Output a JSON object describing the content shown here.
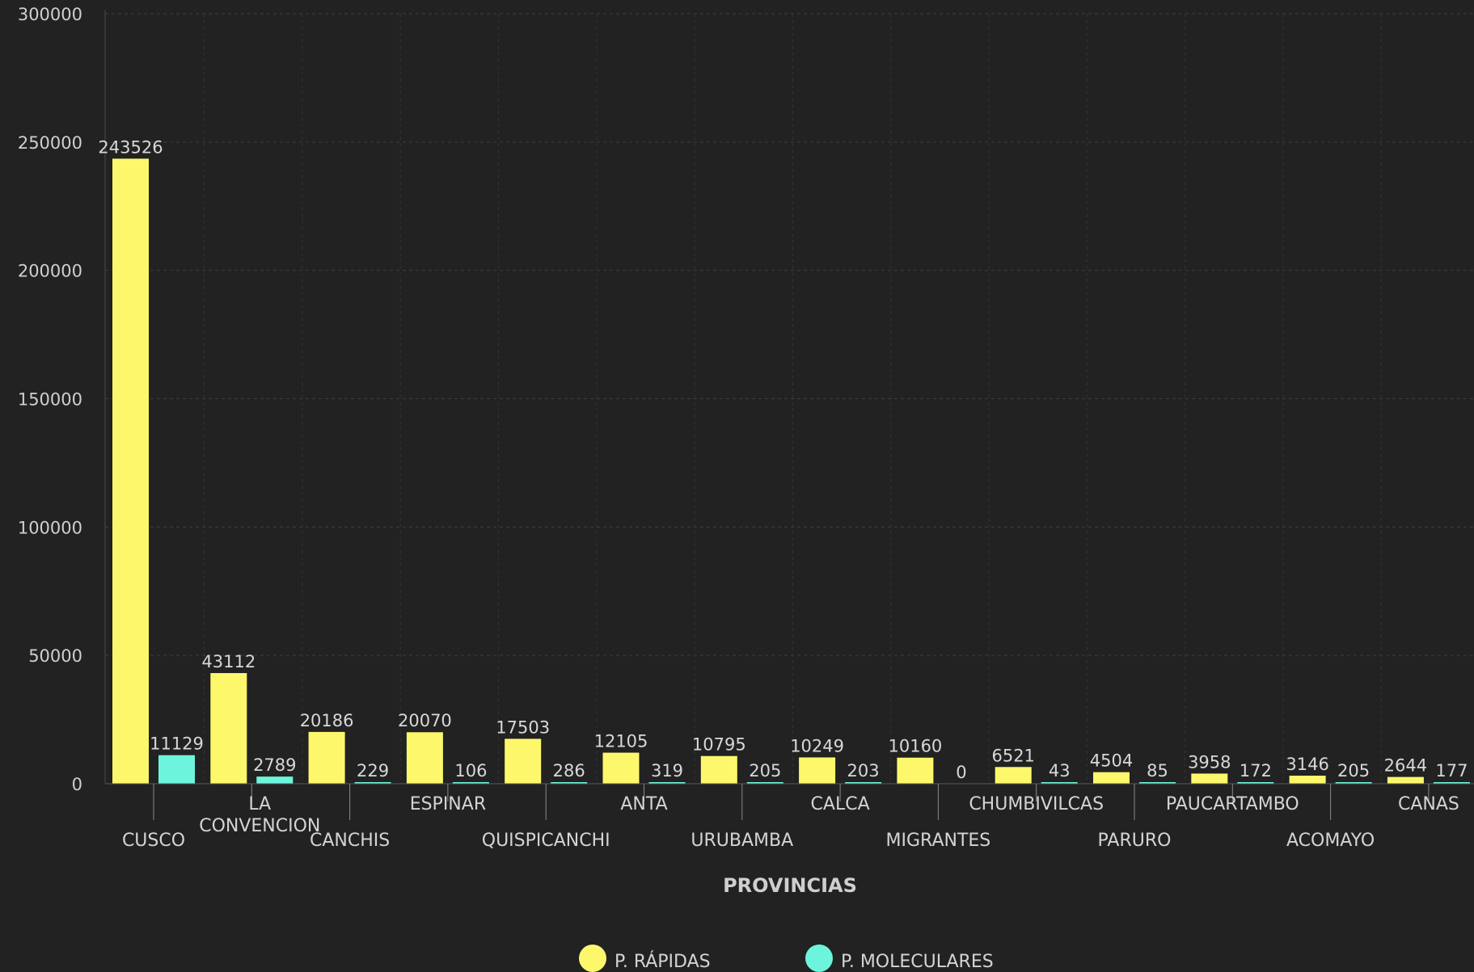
{
  "chart_data": {
    "type": "bar",
    "xlabel": "PROVINCIAS",
    "ylabel": "",
    "ylim": [
      0,
      300000
    ],
    "yticks": [
      0,
      50000,
      100000,
      150000,
      200000,
      250000,
      300000
    ],
    "grid": true,
    "legend_position": "bottom",
    "categories": [
      "CUSCO",
      "LA CONVENCION",
      "CANCHIS",
      "ESPINAR",
      "QUISPICANCHI",
      "ANTA",
      "URUBAMBA",
      "CALCA",
      "MIGRANTES",
      "CHUMBIVILCAS",
      "PARURO",
      "PAUCARTAMBO",
      "ACOMAYO",
      "CANAS"
    ],
    "series": [
      {
        "name": "P. RÁPIDAS",
        "color": "#fdf86b",
        "values": [
          243526,
          43112,
          20186,
          20070,
          17503,
          12105,
          10795,
          10249,
          10160,
          6521,
          4504,
          3958,
          3146,
          2644
        ]
      },
      {
        "name": "P. MOLECULARES",
        "color": "#6cf5dc",
        "values": [
          11129,
          2789,
          229,
          106,
          286,
          319,
          205,
          203,
          0,
          43,
          85,
          172,
          205,
          177
        ]
      }
    ]
  }
}
